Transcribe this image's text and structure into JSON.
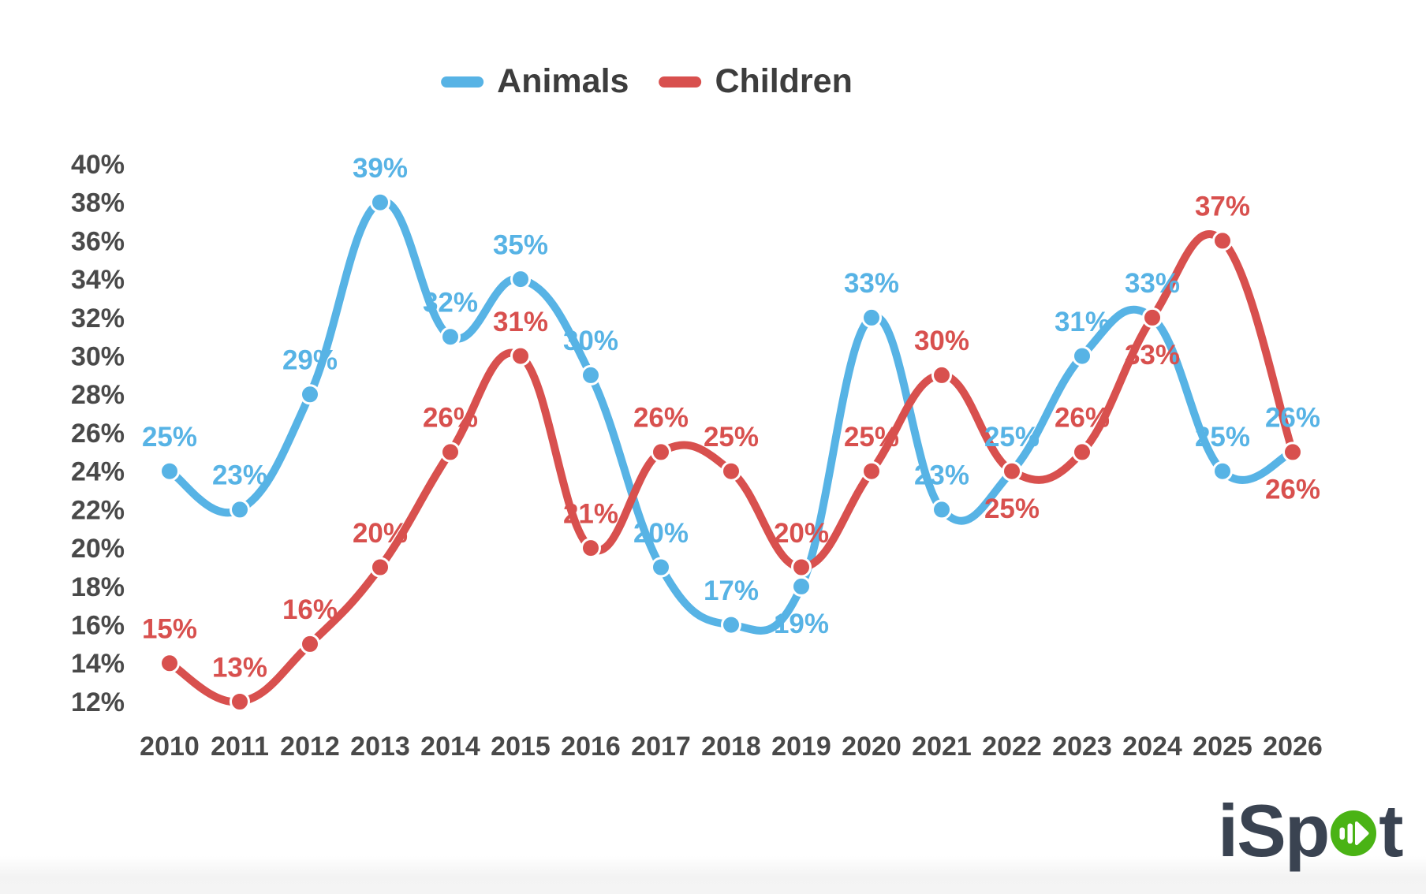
{
  "chart_data": {
    "type": "line",
    "x": [
      "2010",
      "2011",
      "2012",
      "2013",
      "2014",
      "2015",
      "2016",
      "2017",
      "2018",
      "2019",
      "2020",
      "2021",
      "2022",
      "2023",
      "2024",
      "2025",
      "2026"
    ],
    "series": [
      {
        "name": "Animals",
        "color": "#57b3e5",
        "values": [
          25,
          23,
          29,
          39,
          32,
          35,
          30,
          20,
          17,
          19,
          33,
          23,
          25,
          31,
          33,
          25,
          26
        ],
        "label_below_years": [
          "2019"
        ]
      },
      {
        "name": "Children",
        "color": "#d8504e",
        "values": [
          15,
          13,
          16,
          20,
          26,
          31,
          21,
          26,
          25,
          20,
          25,
          30,
          25,
          26,
          33,
          37,
          26
        ],
        "label_below_years": [
          "2022",
          "2024",
          "2026"
        ]
      }
    ],
    "title": "",
    "xlabel": "",
    "ylabel": "",
    "ylim": [
      12,
      40
    ],
    "ytick_step": 2,
    "ytick_suffix": "%",
    "point_label_suffix": "%",
    "grid": false,
    "legend_position": "top",
    "axis_text_color": "#494949"
  },
  "watermark": {
    "brand": "iSpot",
    "prefix": "iSp",
    "suffix": "t",
    "icon": "play-icon",
    "navy": "#3a4351",
    "green": "#4ab315"
  }
}
